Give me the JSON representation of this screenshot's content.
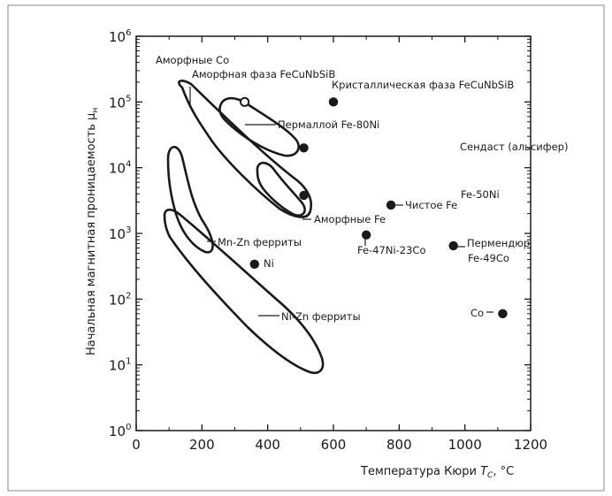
{
  "chart_data": {
    "type": "scatter",
    "title": "",
    "xlabel": {
      "prefix": "Температура Кюри ",
      "symbol": "T",
      "sub": "C",
      "suffix": ", °C"
    },
    "ylabel": {
      "text": "Начальная магнитная проницаемость μ",
      "sub": "н"
    },
    "xlim": [
      0,
      1200
    ],
    "ylim_log10": [
      0,
      6
    ],
    "y_scale": "log",
    "x_ticks": [
      "0",
      "200",
      "400",
      "600",
      "800",
      "1000",
      "1200"
    ],
    "y_ticks": [
      {
        "base": "10",
        "exp": "0"
      },
      {
        "base": "10",
        "exp": "1"
      },
      {
        "base": "10",
        "exp": "2"
      },
      {
        "base": "10",
        "exp": "3"
      },
      {
        "base": "10",
        "exp": "4"
      },
      {
        "base": "10",
        "exp": "5"
      },
      {
        "base": "10",
        "exp": "6"
      }
    ],
    "grid": false,
    "points": [
      {
        "label": "Кристаллическая фаза FeCuNbSiB",
        "x": 600,
        "y": 100000,
        "filled": true
      },
      {
        "label": "Аморфная фаза FeCuNbSiB",
        "x": 330,
        "y": 100000,
        "filled": false
      },
      {
        "label": "Сендаст (альсифер)",
        "x": 510,
        "y": 20000,
        "filled": true
      },
      {
        "label": "Fe-50Ni",
        "x": 510,
        "y": 3800,
        "filled": true
      },
      {
        "label": "Чистое Fe",
        "x": 775,
        "y": 2700,
        "filled": true
      },
      {
        "label": "Fe-47Ni-23Co",
        "x": 700,
        "y": 950,
        "filled": true
      },
      {
        "label": "Пермендюр Fe-49Co",
        "x": 965,
        "y": 650,
        "filled": true
      },
      {
        "label": "Ni",
        "x": 360,
        "y": 340,
        "filled": true
      },
      {
        "label": "Co",
        "x": 1115,
        "y": 60,
        "filled": true
      }
    ],
    "regions": [
      {
        "label": "Аморфные Co",
        "x_range": [
          120,
          560
        ],
        "log10_y_range": [
          3.1,
          5.3
        ]
      },
      {
        "label": "Пермаллой Fe-80Ni",
        "x_range": [
          260,
          440
        ],
        "log10_y_range": [
          4.3,
          5.0
        ]
      },
      {
        "label": "Аморфные Fe",
        "x_range": [
          370,
          560
        ],
        "log10_y_range": [
          3.2,
          4.1
        ]
      },
      {
        "label": "Mn-Zn ферриты",
        "x_range": [
          90,
          240
        ],
        "log10_y_range": [
          2.7,
          4.3
        ]
      },
      {
        "label": "Ni-Zn ферриты",
        "x_range": [
          80,
          560
        ],
        "log10_y_range": [
          1.0,
          3.3
        ]
      }
    ],
    "region_labels": {
      "amorph_co": "Аморфные Co",
      "permalloy": "Пермаллой Fe-80Ni",
      "amorph_fe": "Аморфные Fe",
      "mnzn": "Mn-Zn ферриты",
      "nizn": "Ni-Zn ферриты"
    },
    "point_labels": {
      "cryst": "Кристаллическая фаза FeCuNbSiB",
      "amorph_phase": "Аморфная фаза FeCuNbSiB",
      "sendust": "Сендаст (альсифер)",
      "fe50ni": "Fe-50Ni",
      "pure_fe": "Чистое Fe",
      "fe47": "Fe-47Ni-23Co",
      "permendur_1": "Пермендюр",
      "permendur_2": "Fe-49Co",
      "ni": "Ni",
      "co": "Co"
    }
  }
}
